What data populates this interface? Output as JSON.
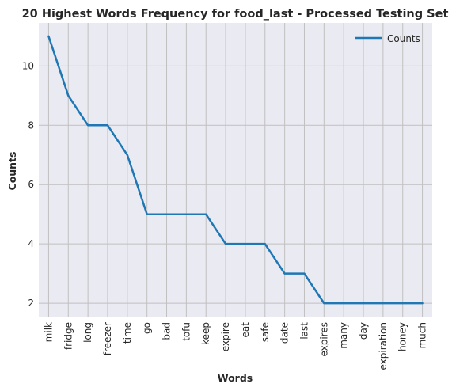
{
  "chart_data": {
    "type": "line",
    "title": "20 Highest Words Frequency for food_last - Processed Testing Set",
    "xlabel": "Words",
    "ylabel": "Counts",
    "categories": [
      "milk",
      "fridge",
      "long",
      "freezer",
      "time",
      "go",
      "bad",
      "tofu",
      "keep",
      "expire",
      "eat",
      "safe",
      "date",
      "last",
      "expires",
      "many",
      "day",
      "expiration",
      "honey",
      "much"
    ],
    "series": [
      {
        "name": "Counts",
        "values": [
          11,
          9,
          8,
          8,
          7,
          5,
          5,
          5,
          5,
          4,
          4,
          4,
          3,
          3,
          2,
          2,
          2,
          2,
          2,
          2
        ],
        "color": "#1f77b4"
      }
    ],
    "yticks": [
      2,
      4,
      6,
      8,
      10
    ],
    "ylim": [
      1.55,
      11.45
    ],
    "grid": true,
    "legend": "top-right",
    "colors": {
      "plot_background": "#eaeaf2",
      "grid": "#c0c0c0"
    }
  }
}
